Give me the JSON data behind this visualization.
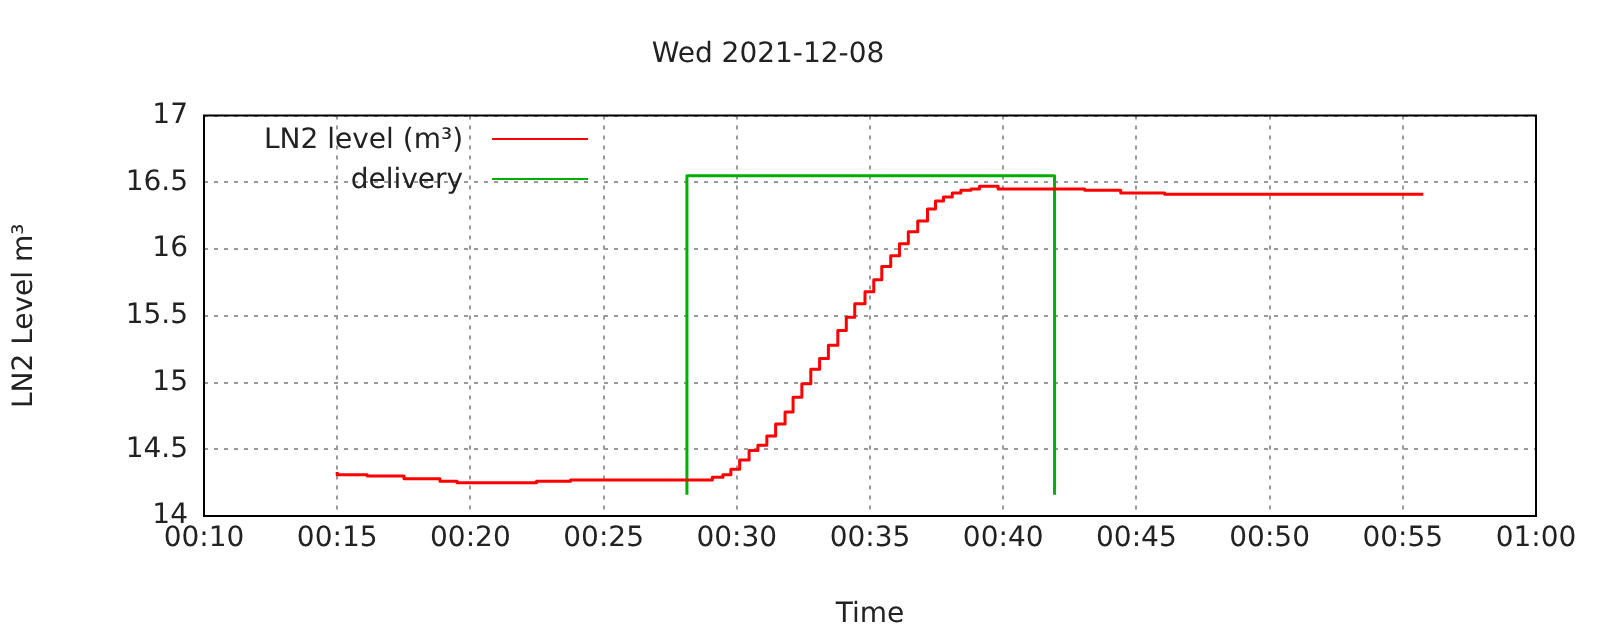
{
  "chart_data": {
    "type": "step",
    "title": "Wed 2021-12-08",
    "xlabel": "Time",
    "ylabel": "LN2 Level m³",
    "xlim": [
      0.16667,
      1
    ],
    "xticks": [
      {
        "value": 0.16667,
        "label": "00:10"
      },
      {
        "value": 0.25,
        "label": "00:15"
      },
      {
        "value": 0.33333,
        "label": "00:20"
      },
      {
        "value": 0.41667,
        "label": "00:25"
      },
      {
        "value": 0.5,
        "label": "00:30"
      },
      {
        "value": 0.58333,
        "label": "00:35"
      },
      {
        "value": 0.66667,
        "label": "00:40"
      },
      {
        "value": 0.75,
        "label": "00:45"
      },
      {
        "value": 0.83333,
        "label": "00:50"
      },
      {
        "value": 0.91667,
        "label": "00:55"
      },
      {
        "value": 1,
        "label": "01:00"
      }
    ],
    "ylim": [
      14,
      17
    ],
    "yticks": [
      14,
      14.5,
      15,
      15.5,
      16,
      16.5,
      17
    ],
    "grid": true,
    "legend": "top left",
    "line_style": "solid",
    "marker": "none",
    "series": [
      {
        "name": "LN2 level (m³)",
        "color": "#ff0000",
        "x": [
          0.25,
          0.2688,
          0.2918,
          0.3143,
          0.325,
          0.3468,
          0.3747,
          0.396,
          0.4847,
          0.4913,
          0.4963,
          0.5018,
          0.5077,
          0.5132,
          0.5188,
          0.5243,
          0.5302,
          0.5352,
          0.5407,
          0.5463,
          0.5518,
          0.5573,
          0.5632,
          0.5685,
          0.5738,
          0.5802,
          0.5857,
          0.5907,
          0.5963,
          0.6018,
          0.6073,
          0.6132,
          0.6193,
          0.6243,
          0.6293,
          0.6348,
          0.6402,
          0.6465,
          0.6518,
          0.6635,
          0.7177,
          0.7402,
          0.7677,
          0.8295,
          0.9295
        ],
        "values": [
          14.33,
          14.31,
          14.3,
          14.28,
          14.26,
          14.25,
          14.25,
          14.26,
          14.27,
          14.29,
          14.31,
          14.35,
          14.42,
          14.49,
          14.53,
          14.6,
          14.69,
          14.78,
          14.89,
          14.99,
          15.1,
          15.18,
          15.28,
          15.39,
          15.49,
          15.59,
          15.68,
          15.77,
          15.87,
          15.95,
          16.04,
          16.13,
          16.21,
          16.3,
          16.36,
          16.39,
          16.42,
          16.44,
          16.45,
          16.47,
          16.45,
          16.44,
          16.42,
          16.41,
          16.41
        ]
      },
      {
        "name": "delivery",
        "color": "#00b000",
        "x": [
          0.4688,
          0.4688,
          0.6988,
          0.6988
        ],
        "values": [
          14.16,
          16.55,
          16.55,
          14.16
        ]
      }
    ]
  }
}
